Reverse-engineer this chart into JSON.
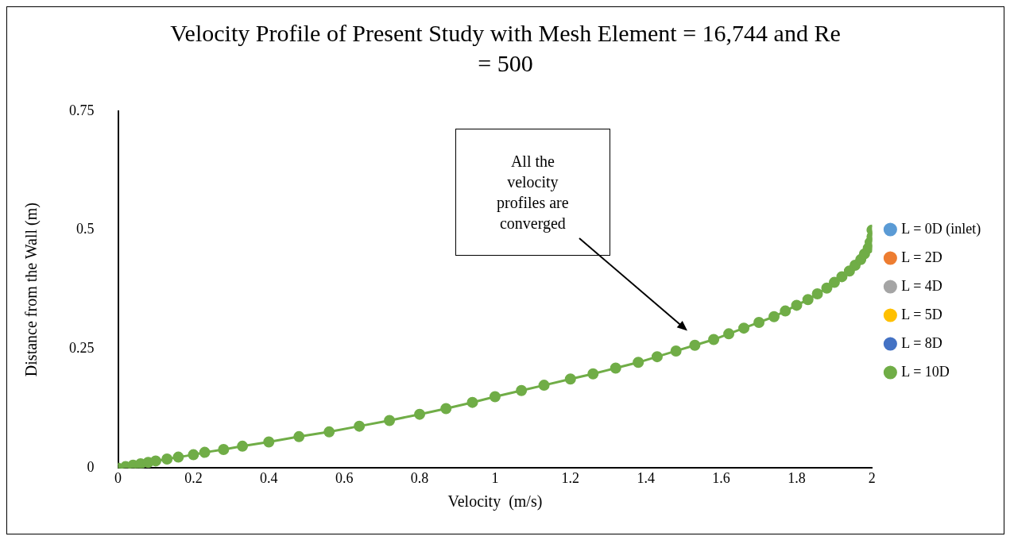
{
  "chart_data": {
    "type": "line",
    "title": "Velocity Profile of Present Study with Mesh Element = 16,744 and Re = 500",
    "xlabel": "Velocity  (m/s)",
    "ylabel": "Distance from the Wall (m)",
    "x": [
      0,
      0.02,
      0.04,
      0.06,
      0.08,
      0.1,
      0.13,
      0.16,
      0.2,
      0.23,
      0.28,
      0.33,
      0.4,
      0.48,
      0.56,
      0.64,
      0.72,
      0.8,
      0.87,
      0.94,
      1.0,
      1.07,
      1.13,
      1.2,
      1.26,
      1.32,
      1.38,
      1.43,
      1.48,
      1.53,
      1.58,
      1.62,
      1.66,
      1.7,
      1.74,
      1.77,
      1.8,
      1.83,
      1.855,
      1.88,
      1.9,
      1.92,
      1.94,
      1.955,
      1.97,
      1.98,
      1.99,
      1.995,
      2.0,
      2.0
    ],
    "series": [
      {
        "name": "L = 0D (inlet)",
        "color": "#5b9bd5",
        "values": [
          null,
          null,
          null,
          null,
          null,
          null,
          null,
          null,
          null,
          null,
          null,
          null,
          null,
          null,
          null,
          null,
          null,
          null,
          null,
          null,
          null,
          null,
          null,
          null,
          null,
          null,
          null,
          null,
          null,
          null,
          null,
          null,
          null,
          null,
          null,
          null,
          null,
          null,
          null,
          null,
          null,
          null,
          null,
          null,
          null,
          null,
          null,
          null,
          null,
          null
        ]
      },
      {
        "name": "L = 2D",
        "color": "#ed7d31",
        "values": [
          null,
          null,
          null,
          null,
          null,
          null,
          null,
          null,
          null,
          null,
          null,
          null,
          null,
          null,
          null,
          null,
          null,
          null,
          null,
          null,
          null,
          null,
          null,
          null,
          null,
          null,
          null,
          null,
          null,
          null,
          null,
          null,
          null,
          null,
          null,
          null,
          null,
          null,
          null,
          null,
          null,
          null,
          null,
          null,
          null,
          null,
          null,
          null,
          null,
          null
        ]
      },
      {
        "name": "L = 4D",
        "color": "#a5a5a5",
        "values": [
          null,
          null,
          null,
          null,
          null,
          null,
          null,
          null,
          null,
          null,
          null,
          null,
          null,
          null,
          null,
          null,
          null,
          null,
          null,
          null,
          null,
          null,
          null,
          null,
          null,
          null,
          null,
          null,
          null,
          null,
          null,
          null,
          null,
          null,
          null,
          null,
          null,
          null,
          null,
          null,
          null,
          null,
          null,
          null,
          null,
          null,
          null,
          null,
          null,
          null
        ]
      },
      {
        "name": "L = 5D",
        "color": "#ffc000",
        "values": [
          null,
          null,
          null,
          null,
          null,
          null,
          null,
          null,
          null,
          null,
          null,
          null,
          null,
          null,
          null,
          null,
          null,
          null,
          null,
          null,
          null,
          null,
          null,
          null,
          null,
          null,
          null,
          null,
          null,
          null,
          null,
          null,
          null,
          null,
          null,
          null,
          null,
          null,
          null,
          null,
          null,
          null,
          null,
          null,
          null,
          null,
          null,
          null,
          null,
          null
        ]
      },
      {
        "name": "L = 8D",
        "color": "#4472c4",
        "values": [
          null,
          null,
          null,
          null,
          null,
          null,
          null,
          null,
          null,
          null,
          null,
          null,
          null,
          null,
          null,
          null,
          null,
          null,
          null,
          null,
          null,
          null,
          null,
          null,
          null,
          null,
          null,
          null,
          null,
          null,
          null,
          null,
          null,
          null,
          null,
          null,
          null,
          null,
          null,
          null,
          null,
          null,
          null,
          null,
          null,
          null,
          null,
          null,
          null,
          null
        ]
      },
      {
        "name": "L = 10D",
        "color": "#70ad47",
        "values": [
          0,
          0.003,
          0.006,
          0.009,
          0.012,
          0.015,
          0.019,
          0.023,
          0.028,
          0.033,
          0.039,
          0.046,
          0.055,
          0.066,
          0.076,
          0.088,
          0.1,
          0.113,
          0.125,
          0.138,
          0.15,
          0.163,
          0.174,
          0.187,
          0.198,
          0.21,
          0.222,
          0.234,
          0.246,
          0.258,
          0.27,
          0.282,
          0.294,
          0.306,
          0.318,
          0.33,
          0.342,
          0.354,
          0.366,
          0.378,
          0.39,
          0.402,
          0.414,
          0.426,
          0.438,
          0.45,
          0.462,
          0.474,
          0.486,
          0.5
        ]
      }
    ],
    "xlim": [
      0,
      2
    ],
    "xticks": [
      0,
      0.2,
      0.4,
      0.6,
      0.8,
      1,
      1.2,
      1.4,
      1.6,
      1.8,
      2
    ],
    "ylim": [
      0,
      0.75
    ],
    "yticks": [
      0,
      0.25,
      0.5,
      0.75
    ],
    "grid": false,
    "legend": "right",
    "marker": "circle",
    "line_style": "solid",
    "annotations": [
      "All the velocity profiles are converged"
    ]
  }
}
